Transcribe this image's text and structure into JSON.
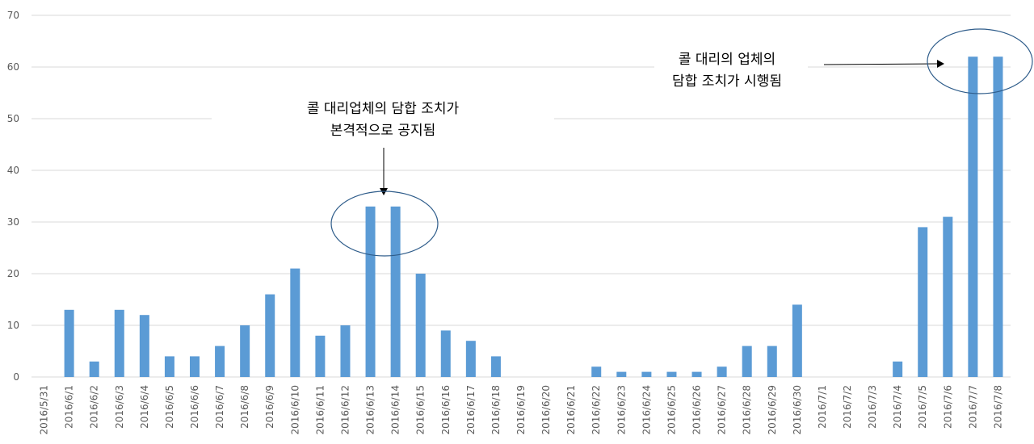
{
  "chart_data": {
    "type": "bar",
    "title": "",
    "xlabel": "",
    "ylabel": "",
    "ylim": [
      0,
      70
    ],
    "yticks": [
      0,
      10,
      20,
      30,
      40,
      50,
      60,
      70
    ],
    "grid": true,
    "legend": "none",
    "colors": {
      "bar": "#5b9bd5",
      "ellipse": "#2e5c8a",
      "grid": "#d9d9d9"
    },
    "categories": [
      "2016/5/31",
      "2016/6/1",
      "2016/6/2",
      "2016/6/3",
      "2016/6/4",
      "2016/6/5",
      "2016/6/6",
      "2016/6/7",
      "2016/6/8",
      "2016/6/9",
      "2016/6/10",
      "2016/6/11",
      "2016/6/12",
      "2016/6/13",
      "2016/6/14",
      "2016/6/15",
      "2016/6/16",
      "2016/6/17",
      "2016/6/18",
      "2016/6/19",
      "2016/6/20",
      "2016/6/21",
      "2016/6/22",
      "2016/6/23",
      "2016/6/24",
      "2016/6/25",
      "2016/6/26",
      "2016/6/27",
      "2016/6/28",
      "2016/6/29",
      "2016/6/30",
      "2016/7/1",
      "2016/7/2",
      "2016/7/3",
      "2016/7/4",
      "2016/7/5",
      "2016/7/6",
      "2016/7/7",
      "2016/7/8"
    ],
    "values": [
      0,
      13,
      3,
      13,
      12,
      4,
      4,
      6,
      10,
      16,
      21,
      8,
      10,
      33,
      33,
      20,
      9,
      7,
      4,
      0,
      0,
      0,
      2,
      1,
      1,
      1,
      1,
      2,
      6,
      6,
      14,
      0,
      0,
      0,
      3,
      29,
      31,
      62,
      62
    ],
    "annotations": [
      {
        "lines": [
          "콜 대리업체의 담합 조치가",
          "본격적으로 공지됨"
        ]
      },
      {
        "lines": [
          "콜 대리의 업체의",
          "담합 조치가 시행됨"
        ]
      }
    ]
  }
}
